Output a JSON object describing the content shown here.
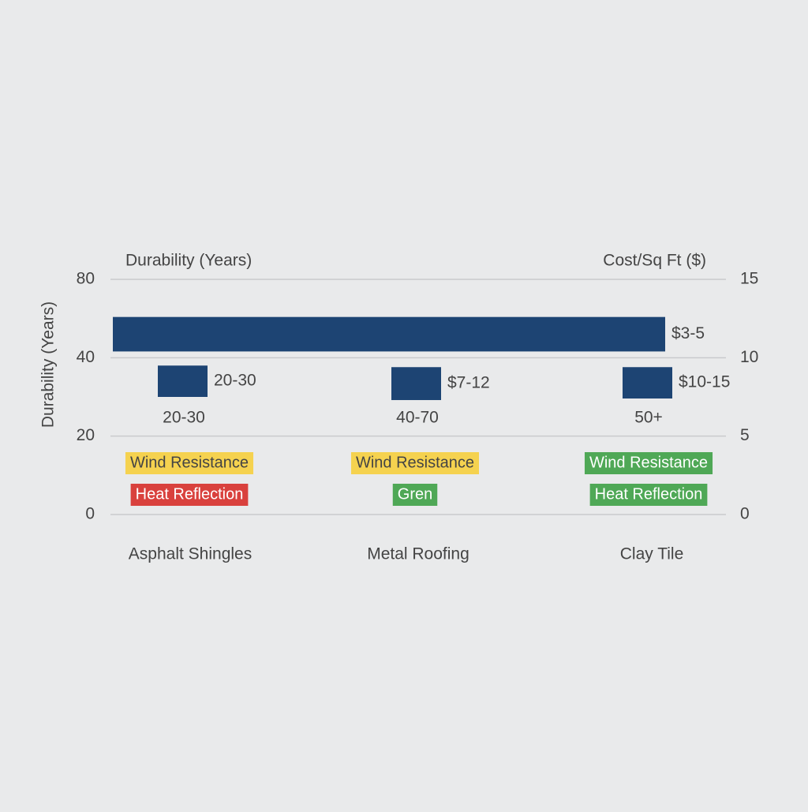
{
  "chart_data": {
    "type": "bar",
    "left_title": "Durability (Years)",
    "right_title": "Cost/Sq Ft ($)",
    "y_label": "Durability (Years)",
    "yticks": [
      80,
      40,
      20,
      0
    ],
    "y2lim": [
      0,
      15
    ],
    "y2ticks": [
      0,
      5,
      10,
      15
    ],
    "grid": true,
    "color": "#1d4473",
    "categories": [
      "Asphalt Shingles",
      "Metal Roofing",
      "Clay Tile"
    ],
    "banner": {
      "range": [
        10.4,
        12.6
      ],
      "label": "$3-5"
    },
    "ranges": [
      [
        7.5,
        9.5
      ],
      [
        7.3,
        9.4
      ],
      [
        7.4,
        9.4
      ]
    ],
    "cost_labels": [
      "20-30",
      "$7-12",
      "$10-15"
    ],
    "durability_labels": [
      "20-30",
      "40-70",
      "50+"
    ],
    "tags": [
      [
        {
          "text": "Wind Resistance",
          "color": "#f5d24f",
          "text_color": "#444444"
        },
        {
          "text": "Heat Reflection",
          "color": "#d9413d",
          "text_color": "#ffffff"
        }
      ],
      [
        {
          "text": "Wind Resistance",
          "color": "#f5d24f",
          "text_color": "#444444"
        },
        {
          "text": "Gren",
          "color": "#4fa856",
          "text_color": "#ffffff"
        }
      ],
      [
        {
          "text": "Wind Resistance",
          "color": "#4fa856",
          "text_color": "#ffffff"
        },
        {
          "text": "Heat Reflection",
          "color": "#4fa856",
          "text_color": "#ffffff"
        }
      ]
    ]
  }
}
